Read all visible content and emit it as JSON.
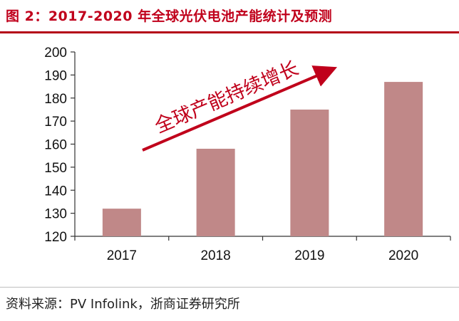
{
  "title": "图 2：2017-2020 年全球光伏电池产能统计及预测",
  "source": "资料来源：PV Infolink，浙商证券研究所",
  "chart_data": {
    "type": "bar",
    "categories": [
      "2017",
      "2018",
      "2019",
      "2020"
    ],
    "values": [
      132,
      158,
      175,
      187
    ],
    "ylim": [
      120,
      200
    ],
    "yticks": [
      120,
      130,
      140,
      150,
      160,
      170,
      180,
      190,
      200
    ],
    "annotation": "全球产能持续增长",
    "grid": false,
    "legend": "none",
    "bar_color": "#c08888",
    "annotation_color": "#c0001b"
  }
}
